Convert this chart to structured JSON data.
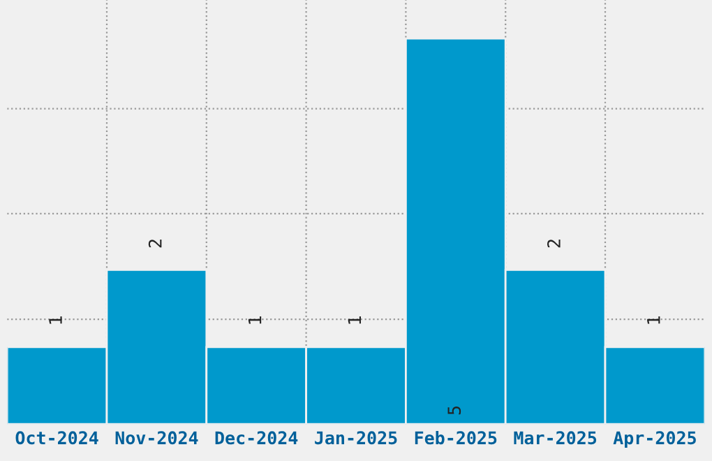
{
  "chart_data": {
    "type": "bar",
    "categories": [
      "Oct-2024",
      "Nov-2024",
      "Dec-2024",
      "Jan-2025",
      "Feb-2025",
      "Mar-2025",
      "Apr-2025"
    ],
    "values": [
      1,
      2,
      1,
      1,
      5,
      2,
      1
    ],
    "color": "#0099cc",
    "data_labels": true,
    "grid": true,
    "tick_labels": "x",
    "ylim": [
      0,
      5.5
    ],
    "yticks": [
      {
        "value": 1.36,
        "label": null
      },
      {
        "value": 2.73,
        "label": null
      },
      {
        "value": 4.09,
        "label": null
      }
    ]
  }
}
